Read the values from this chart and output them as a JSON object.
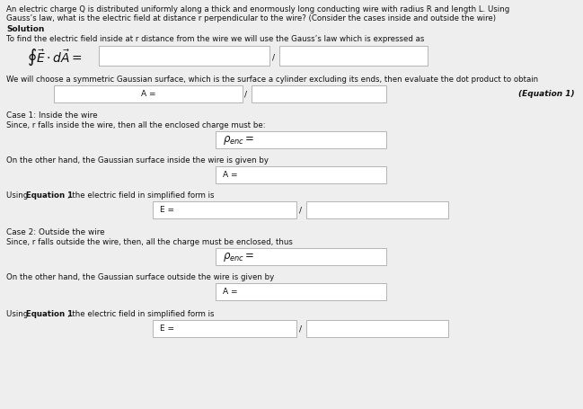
{
  "bg_color": "#eeeeee",
  "title_line1": "An electric charge Q is distributed uniformly along a thick and enormously long conducting wire with radius R and length L. Using",
  "title_line2": "Gauss’s law, what is the electric field at distance r perpendicular to the wire? (Consider the cases inside and outside the wire)",
  "solution_label": "Solution",
  "intro_text": "To find the electric field inside at r distance from the wire we will use the Gauss’s law which is expressed as",
  "gauss_left": "$\\oint\\vec{E}\\cdot d\\vec{A}=$",
  "gauss_slash": "/",
  "gaussian_surface_text": "We will choose a symmetric Gaussian surface, which is the surface a cylinder excluding its ends, then evaluate the dot product to obtain",
  "eq1_left_label": "A =",
  "eq1_slash": "/",
  "eq1_note": "(Equation 1)",
  "case1_title": "Case 1: Inside the wire",
  "case1_text": "Since, r falls inside the wire, then all the enclosed charge must be:",
  "case1_qenc_label": "$\\rho_{enc}=$",
  "case1_gaussian_text": "On the other hand, the Gaussian surface inside the wire is given by",
  "case1_A_label": "A =",
  "case1_using_pre": "Using ",
  "case1_using_bold": "Equation 1",
  "case1_using_post": ", the electric field in simplified form is",
  "case1_E_label": "E =",
  "case1_E_slash": "/",
  "case2_title": "Case 2: Outside the wire",
  "case2_text": "Since, r falls outside the wire, then, all the charge must be enclosed, thus",
  "case2_qenc_label": "$\\rho_{enc}=$",
  "case2_gaussian_text": "On the other hand, the Gaussian surface outside the wire is given by",
  "case2_A_label": "A =",
  "case2_using_pre": "Using ",
  "case2_using_bold": "Equation 1",
  "case2_using_post": ", the electric field in simplified form is",
  "case2_E_label": "E =",
  "case2_E_slash": "/",
  "fs": 6.5,
  "fs_eq": 11,
  "box_fc": "#ffffff",
  "box_ec": "#aaaaaa",
  "text_color": "#111111",
  "lw": 0.6
}
